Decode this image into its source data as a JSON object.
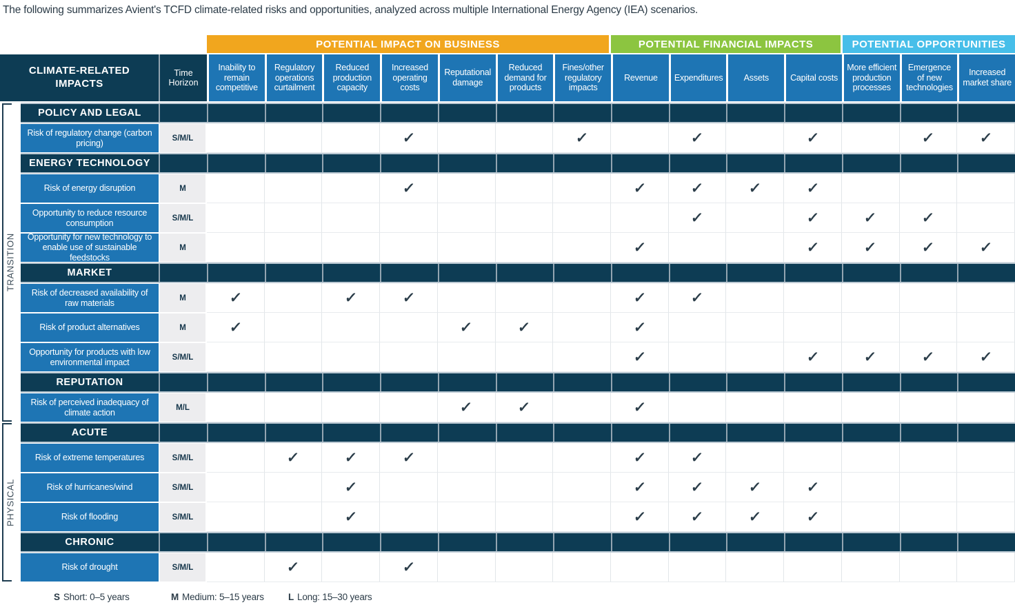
{
  "title": "The following summarizes Avient's TCFD climate-related risks and opportunities, analyzed across multiple International Energy Agency (IEA) scenarios.",
  "colors": {
    "navy": "#0d3c54",
    "blue": "#1e75b4",
    "orange": "#f1a61e",
    "green": "#8cc540",
    "cyan": "#47bee9",
    "time_gray": "#ededef",
    "ink": "#2c3e4a"
  },
  "table": {
    "corner_header": "CLIMATE-RELATED IMPACTS",
    "time_header": "Time Horizon",
    "check_glyph": "✓",
    "groups": [
      {
        "label": "POTENTIAL IMPACT ON BUSINESS",
        "color": "#f1a61e",
        "span": 7
      },
      {
        "label": "POTENTIAL FINANCIAL IMPACTS",
        "color": "#8cc540",
        "span": 4
      },
      {
        "label": "POTENTIAL OPPORTUNITIES",
        "color": "#47bee9",
        "span": 3
      }
    ],
    "columns": [
      "Inability to remain competitive",
      "Regulatory operations curtailment",
      "Reduced production capacity",
      "Increased operating costs",
      "Reputational damage",
      "Reduced demand for products",
      "Fines/other regulatory impacts",
      "Revenue",
      "Expenditures",
      "Assets",
      "Capital costs",
      "More efficient production processes",
      "Emergence of new technologies",
      "Increased market share"
    ],
    "row_groups": [
      {
        "label": "TRANSITION",
        "sections": [
          {
            "header": "POLICY AND LEGAL",
            "rows": [
              {
                "label": "Risk of regulatory change (carbon pricing)",
                "time": "S/M/L",
                "checks": [
                  4,
                  7,
                  9,
                  11,
                  13,
                  14
                ]
              }
            ]
          },
          {
            "header": "ENERGY TECHNOLOGY",
            "rows": [
              {
                "label": "Risk of energy disruption",
                "time": "M",
                "checks": [
                  4,
                  8,
                  9,
                  10,
                  11
                ]
              },
              {
                "label": "Opportunity to reduce resource consumption",
                "time": "S/M/L",
                "checks": [
                  9,
                  11,
                  12,
                  13
                ]
              },
              {
                "label": "Opportunity for new technology to enable use of sustainable feedstocks",
                "time": "M",
                "checks": [
                  8,
                  11,
                  12,
                  13,
                  14
                ]
              }
            ]
          },
          {
            "header": "MARKET",
            "rows": [
              {
                "label": "Risk of decreased availability of raw materials",
                "time": "M",
                "checks": [
                  1,
                  3,
                  4,
                  8,
                  9
                ]
              },
              {
                "label": "Risk of product alternatives",
                "time": "M",
                "checks": [
                  1,
                  5,
                  6,
                  8
                ]
              },
              {
                "label": "Opportunity for products with low environmental impact",
                "time": "S/M/L",
                "checks": [
                  8,
                  11,
                  12,
                  13,
                  14
                ]
              }
            ]
          },
          {
            "header": "REPUTATION",
            "rows": [
              {
                "label": "Risk of perceived inadequacy of climate action",
                "time": "M/L",
                "checks": [
                  5,
                  6,
                  8
                ]
              }
            ]
          }
        ]
      },
      {
        "label": "PHYSICAL",
        "sections": [
          {
            "header": "ACUTE",
            "rows": [
              {
                "label": "Risk of extreme temperatures",
                "time": "S/M/L",
                "checks": [
                  2,
                  3,
                  4,
                  8,
                  9
                ]
              },
              {
                "label": "Risk of hurricanes/wind",
                "time": "S/M/L",
                "checks": [
                  3,
                  8,
                  9,
                  10,
                  11
                ]
              },
              {
                "label": "Risk of flooding",
                "time": "S/M/L",
                "checks": [
                  3,
                  8,
                  9,
                  10,
                  11
                ]
              }
            ]
          },
          {
            "header": "CHRONIC",
            "rows": [
              {
                "label": "Risk of drought",
                "time": "S/M/L",
                "checks": [
                  2,
                  4
                ]
              }
            ]
          }
        ]
      }
    ],
    "legend": [
      {
        "key": "S",
        "text": "Short: 0–5 years"
      },
      {
        "key": "M",
        "text": "Medium: 5–15 years"
      },
      {
        "key": "L",
        "text": "Long: 15–30 years"
      }
    ]
  }
}
